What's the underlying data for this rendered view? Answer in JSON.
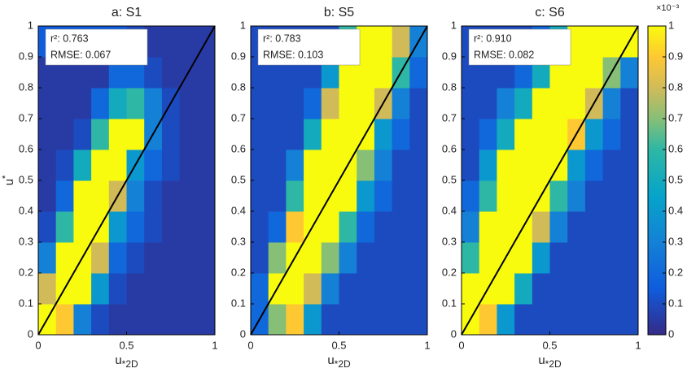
{
  "chart_data": [
    {
      "type": "heatmap",
      "title": "a: S1",
      "xlabel": {
        "base": "u",
        "sub": "*2D"
      },
      "ylabel": {
        "base": "u",
        "sup": "*"
      },
      "annotations": [
        "r²: 0.763",
        "RMSE: 0.067"
      ],
      "xlim": [
        0,
        1
      ],
      "ylim": [
        0,
        1
      ],
      "xticks": [
        0,
        0.5,
        1
      ],
      "yticks": [
        0,
        0.1,
        0.2,
        0.3,
        0.4,
        0.5,
        0.6,
        0.7,
        0.8,
        0.9,
        1
      ],
      "z": [
        [
          1,
          0.9,
          0.3,
          0.1,
          0.05,
          0.05,
          0.05,
          0.05,
          0.05,
          0.05
        ],
        [
          0.8,
          1,
          1,
          0.4,
          0.1,
          0.05,
          0.05,
          0.05,
          0.05,
          0.05
        ],
        [
          0.3,
          1,
          1,
          0.8,
          0.2,
          0.1,
          0.05,
          0.05,
          0.05,
          0.05
        ],
        [
          0.1,
          0.6,
          1,
          1,
          0.4,
          0.2,
          0.1,
          0.05,
          0.05,
          0.05
        ],
        [
          0.05,
          0.2,
          1,
          1,
          0.8,
          0.3,
          0.1,
          0.05,
          0.05,
          0.05
        ],
        [
          0.05,
          0.1,
          0.5,
          1,
          1,
          0.4,
          0.2,
          0.1,
          0.05,
          0.05
        ],
        [
          0.05,
          0.05,
          0.1,
          0.6,
          1,
          1,
          0.3,
          0.1,
          0.05,
          0.05
        ],
        [
          0.05,
          0.05,
          0.05,
          0.2,
          0.5,
          0.6,
          0.3,
          0.1,
          0.05,
          0.05
        ],
        [
          0.05,
          0.05,
          0.05,
          0.05,
          0.2,
          0.2,
          0.1,
          0.05,
          0.05,
          0.05
        ],
        [
          0.15,
          0.15,
          0.15,
          0.15,
          0.15,
          0.1,
          0.05,
          0.05,
          0.05,
          0.05
        ]
      ]
    },
    {
      "type": "heatmap",
      "title": "b: S5",
      "xlabel": {
        "base": "u",
        "sub": "*2D"
      },
      "annotations": [
        "r²: 0.783",
        "RMSE: 0.103"
      ],
      "xlim": [
        0,
        1
      ],
      "ylim": [
        0,
        1
      ],
      "xticks": [
        0,
        0.5,
        1
      ],
      "yticks": [
        0,
        0.1,
        0.2,
        0.3,
        0.4,
        0.5,
        0.6,
        0.7,
        0.8,
        0.9,
        1
      ],
      "z": [
        [
          0.2,
          0.7,
          0.9,
          0.4,
          0.1,
          0.1,
          0.1,
          0.1,
          0.1,
          0.1
        ],
        [
          0.2,
          1,
          1,
          0.8,
          0.3,
          0.1,
          0.1,
          0.1,
          0.1,
          0.1
        ],
        [
          0.1,
          0.7,
          1,
          1,
          0.7,
          0.3,
          0.1,
          0.1,
          0.1,
          0.1
        ],
        [
          0.1,
          0.2,
          0.9,
          1,
          1,
          0.6,
          0.2,
          0.1,
          0.1,
          0.1
        ],
        [
          0.1,
          0.1,
          0.6,
          1,
          1,
          1,
          0.4,
          0.2,
          0.1,
          0.1
        ],
        [
          0.1,
          0.1,
          0.3,
          1,
          1,
          1,
          0.7,
          0.3,
          0.1,
          0.1
        ],
        [
          0.1,
          0.1,
          0.1,
          0.5,
          1,
          1,
          1,
          0.4,
          0.2,
          0.1
        ],
        [
          0.1,
          0.1,
          0.1,
          0.2,
          0.8,
          1,
          1,
          0.8,
          0.3,
          0.1
        ],
        [
          0.1,
          0.1,
          0.1,
          0.1,
          0.4,
          1,
          1,
          1,
          0.6,
          0.2
        ],
        [
          0.1,
          0.1,
          0.1,
          0.1,
          0.1,
          0.6,
          1,
          1,
          0.8,
          0.3
        ]
      ]
    },
    {
      "type": "heatmap",
      "title": "c: S6",
      "xlabel": {
        "base": "u",
        "sub": "*2D"
      },
      "annotations": [
        "r²: 0.910",
        "RMSE: 0.082"
      ],
      "xlim": [
        0,
        1
      ],
      "ylim": [
        0,
        1
      ],
      "xticks": [
        0,
        0.5,
        1
      ],
      "yticks": [
        0,
        0.1,
        0.2,
        0.3,
        0.4,
        0.5,
        0.6,
        0.7,
        0.8,
        0.9,
        1
      ],
      "z": [
        [
          1,
          0.9,
          0.4,
          0.1,
          0.1,
          0.1,
          0.1,
          0.1,
          0.1,
          0.1
        ],
        [
          1,
          1,
          1,
          0.5,
          0.1,
          0.1,
          0.1,
          0.1,
          0.1,
          0.1
        ],
        [
          0.6,
          1,
          1,
          1,
          0.4,
          0.1,
          0.1,
          0.1,
          0.1,
          0.1
        ],
        [
          0.3,
          1,
          1,
          1,
          0.8,
          0.3,
          0.1,
          0.1,
          0.1,
          0.1
        ],
        [
          0.2,
          0.6,
          1,
          1,
          1,
          0.6,
          0.3,
          0.1,
          0.1,
          0.1
        ],
        [
          0.1,
          0.4,
          1,
          1,
          1,
          1,
          0.4,
          0.2,
          0.1,
          0.1
        ],
        [
          0.1,
          0.2,
          0.5,
          1,
          1,
          1,
          0.9,
          0.4,
          0.2,
          0.1
        ],
        [
          0.1,
          0.1,
          0.3,
          0.5,
          1,
          1,
          1,
          0.8,
          0.3,
          0.1
        ],
        [
          0.1,
          0.1,
          0.1,
          0.2,
          0.5,
          1,
          1,
          1,
          0.7,
          0.3
        ],
        [
          0.1,
          0.1,
          0.1,
          0.1,
          0.2,
          0.5,
          1,
          1,
          1,
          1
        ]
      ]
    },
    {
      "type": "colorbar",
      "colormap": "parula",
      "multiplier": "×10⁻³",
      "clim": [
        0,
        1
      ],
      "ticks": [
        0,
        0.1,
        0.2,
        0.3,
        0.4,
        0.5,
        0.6,
        0.7,
        0.8,
        0.9,
        1
      ]
    }
  ]
}
